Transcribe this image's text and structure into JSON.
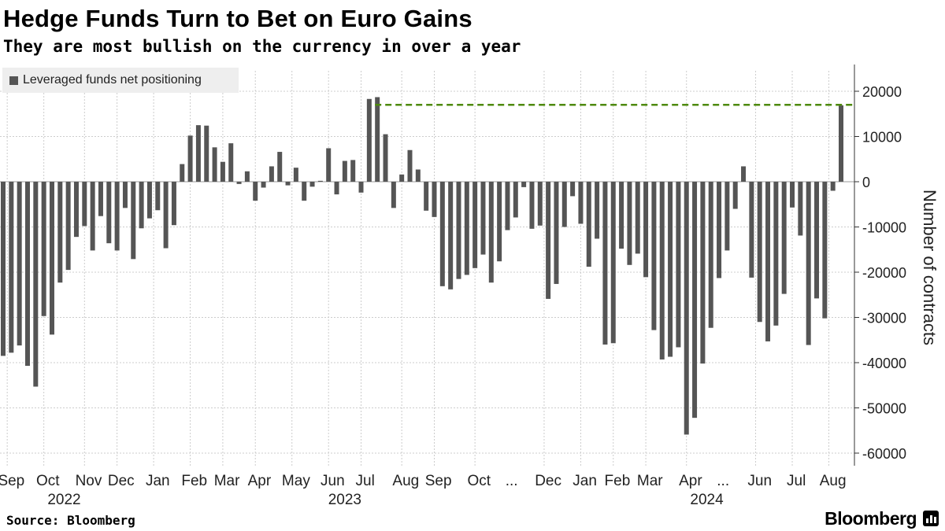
{
  "header": {
    "title": "Hedge Funds Turn to Bet on Euro Gains",
    "subtitle": "They are most bullish on the currency in over a year"
  },
  "legend": {
    "label": "Leveraged funds net positioning"
  },
  "footer": {
    "source": "Source: Bloomberg",
    "brand": "Bloomberg"
  },
  "colors": {
    "bar": "#555555",
    "reference_line": "#4e8a0e",
    "grid": "#cccccc",
    "legend_bg": "#eeeeee"
  },
  "chart_data": {
    "type": "bar",
    "title": "Hedge Funds Turn to Bet on Euro Gains",
    "subtitle": "They are most bullish on the currency in over a year",
    "ylabel": "Number of contracts",
    "ylim": [
      -63000,
      26000
    ],
    "yticks": [
      20000,
      10000,
      0,
      -10000,
      -20000,
      -30000,
      -40000,
      -50000,
      -60000
    ],
    "ytick_labels": [
      "20000",
      "10000",
      "0",
      "-10000",
      "-20000",
      "-30000",
      "-40000",
      "-50000",
      "-60000"
    ],
    "series": [
      {
        "name": "Leveraged funds net positioning",
        "values": [
          -38500,
          -37800,
          -36200,
          -40700,
          -45300,
          -29700,
          -33800,
          -22300,
          -19500,
          -12200,
          -9800,
          -15200,
          -7600,
          -13600,
          -15200,
          -5800,
          -17100,
          -10300,
          -8100,
          -6300,
          -14700,
          -9600,
          3900,
          10200,
          12500,
          12400,
          7600,
          4400,
          8500,
          -500,
          2300,
          -4200,
          -1300,
          3400,
          6600,
          -800,
          3100,
          -4200,
          -1100,
          200,
          7400,
          -2800,
          4600,
          4800,
          -2400,
          18300,
          18700,
          10500,
          -5800,
          1600,
          7000,
          2700,
          -6400,
          -7800,
          -23100,
          -23800,
          -21500,
          -20600,
          -19100,
          -16100,
          -22300,
          -17600,
          -10700,
          -7900,
          -1200,
          -10400,
          -9700,
          -25900,
          -22600,
          -10000,
          -3200,
          -9300,
          -18800,
          -12600,
          -36000,
          -35700,
          -14800,
          -18400,
          -15900,
          -21100,
          -32800,
          -39300,
          -38700,
          -36600,
          -55900,
          -52200,
          -40200,
          -32300,
          -21300,
          -15200,
          -6000,
          3400,
          -21200,
          -31000,
          -35300,
          -31800,
          -24800,
          -5700,
          -11900,
          -36100,
          -25800,
          -30200,
          -2000,
          16900
        ]
      }
    ],
    "reference_line": {
      "value": 17000,
      "from_index": 46,
      "style": "dashed"
    },
    "month_labels": [
      {
        "label": "Sep",
        "index": 1
      },
      {
        "label": "Oct",
        "index": 5.5
      },
      {
        "label": "Nov",
        "index": 10.5
      },
      {
        "label": "Dec",
        "index": 14.5
      },
      {
        "label": "Jan",
        "index": 19
      },
      {
        "label": "Feb",
        "index": 23.5
      },
      {
        "label": "Mar",
        "index": 27.5
      },
      {
        "label": "Apr",
        "index": 31.5
      },
      {
        "label": "May",
        "index": 36
      },
      {
        "label": "Jun",
        "index": 40.5
      },
      {
        "label": "Jul",
        "index": 44.5
      },
      {
        "label": "Aug",
        "index": 49.5
      },
      {
        "label": "Sep",
        "index": 53.5
      },
      {
        "label": "Oct",
        "index": 58.5
      },
      {
        "label": "...",
        "index": 62.5
      },
      {
        "label": "Dec",
        "index": 67
      },
      {
        "label": "Jan",
        "index": 71.5
      },
      {
        "label": "Feb",
        "index": 75.5
      },
      {
        "label": "Mar",
        "index": 79.5
      },
      {
        "label": "Apr",
        "index": 84.5
      },
      {
        "label": "...",
        "index": 88.5
      },
      {
        "label": "Jun",
        "index": 93
      },
      {
        "label": "Jul",
        "index": 97.5
      },
      {
        "label": "Aug",
        "index": 102
      }
    ],
    "year_labels": [
      {
        "label": "2022",
        "index": 7.5
      },
      {
        "label": "2023",
        "index": 42
      },
      {
        "label": "2024",
        "index": 86.5
      }
    ],
    "gridlines": true,
    "legend_position": "top-left"
  }
}
